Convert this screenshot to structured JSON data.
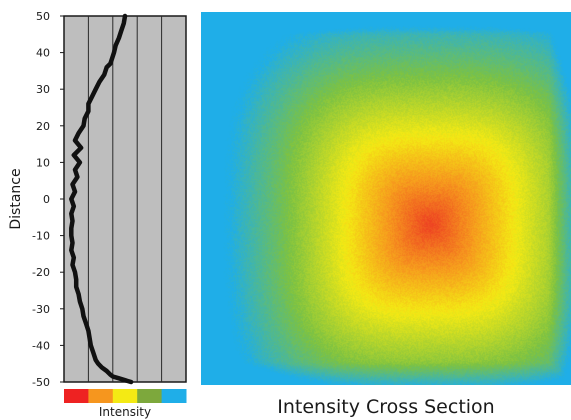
{
  "chart_data": [
    {
      "type": "line",
      "ylabel": "Distance",
      "xlabel": "Intensity",
      "ylim": [
        -50,
        50
      ],
      "yticks": [
        50,
        40,
        30,
        20,
        10,
        0,
        -10,
        -20,
        -30,
        -40,
        -50
      ],
      "xlim": [
        0,
        5
      ],
      "grid": true,
      "color_scale": [
        "#ee2222",
        "#f6961e",
        "#f4ea14",
        "#7da83c",
        "#1faee8"
      ],
      "series": [
        {
          "x": [
            2.5,
            2.45,
            2.35,
            2.25,
            2.12,
            2.05,
            1.95,
            1.9,
            1.75,
            1.65,
            1.45,
            1.3,
            1.15,
            1.0,
            1.0,
            0.85,
            0.8,
            0.6,
            0.45,
            0.7,
            0.4,
            0.65,
            0.45,
            0.55,
            0.35,
            0.45,
            0.3,
            0.4,
            0.3,
            0.35,
            0.3,
            0.3,
            0.35,
            0.3,
            0.4,
            0.35,
            0.45,
            0.5,
            0.5,
            0.6,
            0.65,
            0.75,
            0.8,
            0.9,
            1.0,
            1.05,
            1.1,
            1.2,
            1.3,
            1.4,
            1.55,
            1.75,
            1.9,
            2.0,
            2.25,
            2.5,
            2.75
          ],
          "y": [
            50,
            48,
            46,
            44,
            42,
            40,
            38,
            37,
            36,
            34,
            32,
            30,
            28,
            26,
            24,
            22,
            20,
            18,
            16,
            14,
            12,
            10,
            8,
            6,
            4,
            2,
            0,
            -2,
            -4,
            -6,
            -8,
            -10,
            -12,
            -14,
            -16,
            -18,
            -20,
            -22,
            -24,
            -26,
            -28,
            -30,
            -32,
            -34,
            -36,
            -38,
            -40,
            -42,
            -44,
            -45,
            -46,
            -47,
            -48,
            -48.5,
            -49,
            -49.5,
            -50
          ]
        }
      ]
    },
    {
      "type": "heatmap",
      "title": "Intensity Cross Section",
      "colormap": [
        "#1faee8",
        "#7dc242",
        "#f4ea14",
        "#f6961e",
        "#ee4422"
      ]
    }
  ]
}
